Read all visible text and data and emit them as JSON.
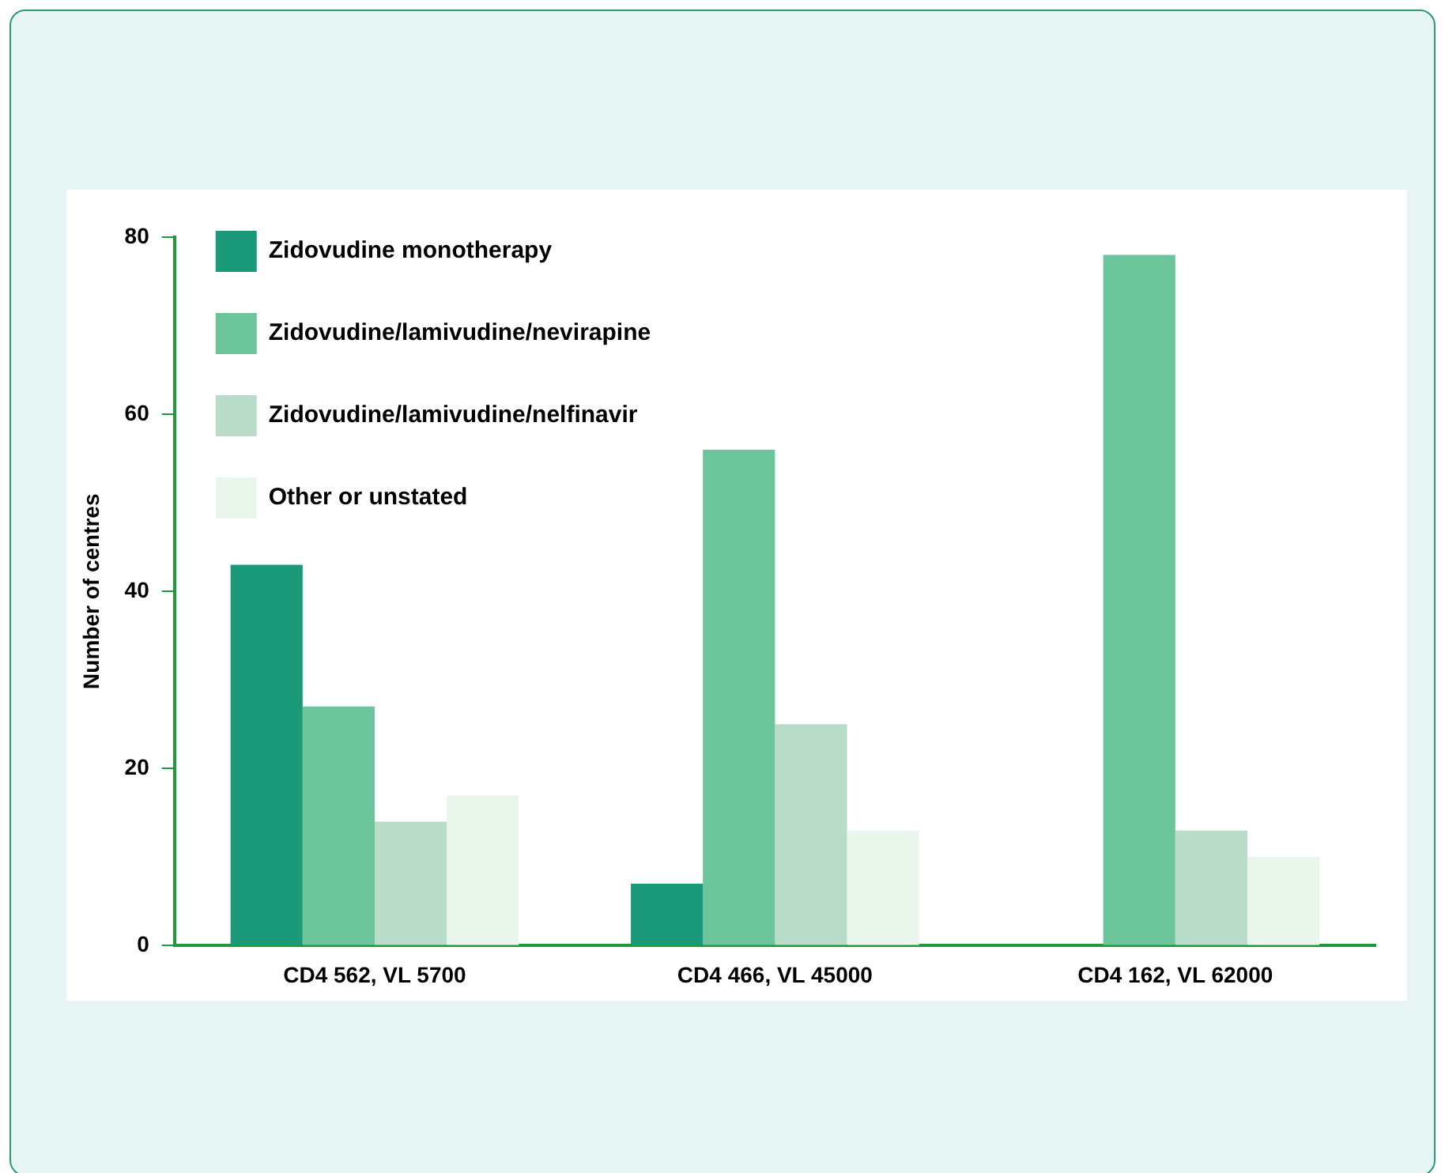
{
  "chart_data": {
    "type": "bar",
    "ylabel": "Number of centres",
    "categories": [
      "CD4 562, VL 5700",
      "CD4 466, VL 45000",
      "CD4 162, VL 62000"
    ],
    "series": [
      {
        "name": "Zidovudine monotherapy",
        "color": "#1a9a78",
        "values": [
          43,
          7,
          null
        ]
      },
      {
        "name": "Zidovudine/lamivudine/nevirapine",
        "color": "#6cc49a",
        "values": [
          27,
          56,
          78
        ]
      },
      {
        "name": "Zidovudine/lamivudine/nelfinavir",
        "color": "#b9dcc9",
        "values": [
          14,
          25,
          13
        ]
      },
      {
        "name": "Other or unstated",
        "color": "#eaf6ec",
        "values": [
          17,
          13,
          10
        ]
      }
    ],
    "ylim": [
      0,
      80
    ],
    "yticks": [
      0,
      20,
      40,
      60,
      80
    ],
    "grid": false,
    "legend": "top left"
  }
}
